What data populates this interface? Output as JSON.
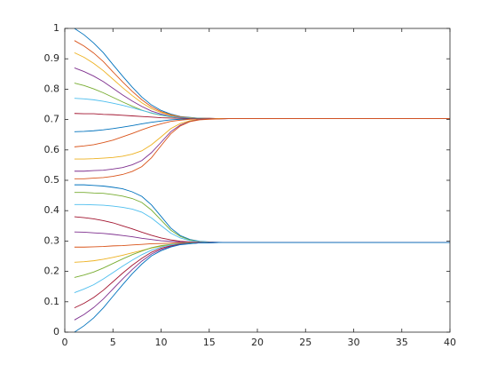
{
  "chart_data": {
    "type": "line",
    "x": [
      1,
      2,
      3,
      4,
      5,
      6,
      7,
      8,
      9,
      10,
      11,
      12,
      13,
      14,
      15,
      16,
      17,
      18,
      19,
      20,
      25,
      30,
      35,
      40
    ],
    "xlim": [
      0,
      40
    ],
    "xticks": [
      0,
      5,
      10,
      15,
      20,
      25,
      30,
      35,
      40
    ],
    "ylim": [
      0,
      1
    ],
    "yticks": [
      0,
      0.1,
      0.2,
      0.3,
      0.4,
      0.5,
      0.6,
      0.7,
      0.8,
      0.9,
      1
    ],
    "grid": false,
    "series": [
      {
        "color": "#0072BD",
        "values": [
          1.0,
          0.979,
          0.952,
          0.92,
          0.881,
          0.843,
          0.807,
          0.774,
          0.748,
          0.73,
          0.718,
          0.71,
          0.707,
          0.704,
          0.704,
          0.703,
          0.703,
          0.703,
          0.703,
          0.703,
          0.703,
          0.703,
          0.703,
          0.703
        ]
      },
      {
        "color": "#D95319",
        "values": [
          0.96,
          0.942,
          0.919,
          0.891,
          0.857,
          0.824,
          0.793,
          0.765,
          0.742,
          0.726,
          0.716,
          0.709,
          0.706,
          0.704,
          0.704,
          0.703,
          0.703,
          0.703,
          0.703,
          0.703,
          0.703,
          0.703,
          0.703,
          0.703
        ]
      },
      {
        "color": "#EDB120",
        "values": [
          0.92,
          0.905,
          0.885,
          0.861,
          0.833,
          0.805,
          0.779,
          0.755,
          0.736,
          0.723,
          0.714,
          0.708,
          0.706,
          0.704,
          0.703,
          0.703,
          0.703,
          0.703,
          0.703,
          0.703,
          0.703,
          0.703,
          0.703,
          0.703
        ]
      },
      {
        "color": "#7E2F8E",
        "values": [
          0.87,
          0.858,
          0.843,
          0.825,
          0.803,
          0.781,
          0.761,
          0.743,
          0.728,
          0.718,
          0.711,
          0.707,
          0.705,
          0.704,
          0.703,
          0.703,
          0.703,
          0.703,
          0.703,
          0.703,
          0.703,
          0.703,
          0.703,
          0.703
        ]
      },
      {
        "color": "#77AC30",
        "values": [
          0.82,
          0.812,
          0.801,
          0.788,
          0.773,
          0.758,
          0.744,
          0.731,
          0.721,
          0.714,
          0.709,
          0.706,
          0.704,
          0.704,
          0.703,
          0.703,
          0.703,
          0.703,
          0.703,
          0.703,
          0.703,
          0.703,
          0.703,
          0.703
        ]
      },
      {
        "color": "#4DBEEE",
        "values": [
          0.77,
          0.768,
          0.765,
          0.76,
          0.754,
          0.747,
          0.739,
          0.73,
          0.722,
          0.715,
          0.71,
          0.706,
          0.704,
          0.704,
          0.703,
          0.703,
          0.703,
          0.703,
          0.703,
          0.703,
          0.703,
          0.703,
          0.703,
          0.703
        ]
      },
      {
        "color": "#A2142F",
        "values": [
          0.72,
          0.719,
          0.719,
          0.717,
          0.716,
          0.714,
          0.712,
          0.71,
          0.708,
          0.706,
          0.705,
          0.704,
          0.703,
          0.703,
          0.703,
          0.703,
          0.703,
          0.703,
          0.703,
          0.703,
          0.703,
          0.703,
          0.703,
          0.703
        ]
      },
      {
        "color": "#0072BD",
        "values": [
          0.66,
          0.661,
          0.663,
          0.666,
          0.67,
          0.675,
          0.68,
          0.686,
          0.691,
          0.695,
          0.699,
          0.701,
          0.702,
          0.703,
          0.703,
          0.703,
          0.703,
          0.703,
          0.703,
          0.703,
          0.703,
          0.703,
          0.703,
          0.703
        ]
      },
      {
        "color": "#D95319",
        "values": [
          0.61,
          0.613,
          0.617,
          0.624,
          0.632,
          0.643,
          0.654,
          0.666,
          0.677,
          0.686,
          0.694,
          0.698,
          0.701,
          0.702,
          0.703,
          0.703,
          0.703,
          0.703,
          0.703,
          0.703,
          0.703,
          0.703,
          0.703,
          0.703
        ]
      },
      {
        "color": "#EDB120",
        "values": [
          0.57,
          0.57,
          0.571,
          0.573,
          0.575,
          0.579,
          0.586,
          0.597,
          0.617,
          0.643,
          0.67,
          0.687,
          0.696,
          0.7,
          0.702,
          0.703,
          0.703,
          0.703,
          0.703,
          0.703,
          0.703,
          0.703,
          0.703,
          0.703
        ]
      },
      {
        "color": "#7E2F8E",
        "values": [
          0.53,
          0.53,
          0.532,
          0.533,
          0.537,
          0.542,
          0.551,
          0.565,
          0.591,
          0.625,
          0.66,
          0.682,
          0.694,
          0.7,
          0.702,
          0.702,
          0.703,
          0.703,
          0.703,
          0.703,
          0.703,
          0.703,
          0.703,
          0.703
        ]
      },
      {
        "color": "#D95319",
        "values": [
          0.505,
          0.505,
          0.507,
          0.509,
          0.513,
          0.519,
          0.529,
          0.545,
          0.574,
          0.614,
          0.653,
          0.679,
          0.693,
          0.699,
          0.701,
          0.702,
          0.703,
          0.703,
          0.703,
          0.703,
          0.703,
          0.703,
          0.703,
          0.703
        ]
      },
      {
        "color": "#0072BD",
        "values": [
          0.485,
          0.485,
          0.483,
          0.481,
          0.477,
          0.472,
          0.462,
          0.447,
          0.419,
          0.381,
          0.343,
          0.318,
          0.305,
          0.299,
          0.297,
          0.296,
          0.295,
          0.295,
          0.295,
          0.295,
          0.295,
          0.295,
          0.295,
          0.295
        ]
      },
      {
        "color": "#77AC30",
        "values": [
          0.46,
          0.46,
          0.458,
          0.457,
          0.453,
          0.448,
          0.44,
          0.427,
          0.402,
          0.369,
          0.336,
          0.315,
          0.303,
          0.298,
          0.296,
          0.295,
          0.295,
          0.295,
          0.295,
          0.295,
          0.295,
          0.295,
          0.295,
          0.295
        ]
      },
      {
        "color": "#4DBEEE",
        "values": [
          0.42,
          0.42,
          0.419,
          0.418,
          0.415,
          0.411,
          0.405,
          0.395,
          0.376,
          0.351,
          0.326,
          0.31,
          0.301,
          0.298,
          0.296,
          0.295,
          0.295,
          0.295,
          0.295,
          0.295,
          0.295,
          0.295,
          0.295,
          0.295
        ]
      },
      {
        "color": "#A2142F",
        "values": [
          0.38,
          0.377,
          0.373,
          0.367,
          0.36,
          0.35,
          0.34,
          0.329,
          0.319,
          0.31,
          0.304,
          0.299,
          0.297,
          0.296,
          0.295,
          0.295,
          0.295,
          0.295,
          0.295,
          0.295,
          0.295,
          0.295,
          0.295,
          0.295
        ]
      },
      {
        "color": "#7E2F8E",
        "values": [
          0.33,
          0.329,
          0.327,
          0.325,
          0.322,
          0.318,
          0.314,
          0.309,
          0.305,
          0.301,
          0.299,
          0.297,
          0.296,
          0.295,
          0.295,
          0.295,
          0.295,
          0.295,
          0.295,
          0.295,
          0.295,
          0.295,
          0.295,
          0.295
        ]
      },
      {
        "color": "#D95319",
        "values": [
          0.28,
          0.28,
          0.281,
          0.282,
          0.284,
          0.285,
          0.287,
          0.289,
          0.291,
          0.292,
          0.293,
          0.294,
          0.295,
          0.295,
          0.295,
          0.295,
          0.295,
          0.295,
          0.295,
          0.295,
          0.295,
          0.295,
          0.295,
          0.295
        ]
      },
      {
        "color": "#EDB120",
        "values": [
          0.23,
          0.232,
          0.235,
          0.24,
          0.246,
          0.253,
          0.261,
          0.269,
          0.277,
          0.283,
          0.288,
          0.292,
          0.294,
          0.294,
          0.295,
          0.295,
          0.295,
          0.295,
          0.295,
          0.295,
          0.295,
          0.295,
          0.295,
          0.295
        ]
      },
      {
        "color": "#77AC30",
        "values": [
          0.18,
          0.188,
          0.198,
          0.211,
          0.226,
          0.241,
          0.255,
          0.267,
          0.278,
          0.285,
          0.289,
          0.292,
          0.294,
          0.294,
          0.295,
          0.295,
          0.295,
          0.295,
          0.295,
          0.295,
          0.295,
          0.295,
          0.295,
          0.295
        ]
      },
      {
        "color": "#4DBEEE",
        "values": [
          0.13,
          0.142,
          0.156,
          0.175,
          0.196,
          0.217,
          0.237,
          0.255,
          0.27,
          0.28,
          0.287,
          0.291,
          0.293,
          0.294,
          0.295,
          0.295,
          0.295,
          0.295,
          0.295,
          0.295,
          0.295,
          0.295,
          0.295,
          0.295
        ]
      },
      {
        "color": "#A2142F",
        "values": [
          0.08,
          0.095,
          0.114,
          0.138,
          0.166,
          0.194,
          0.22,
          0.243,
          0.263,
          0.276,
          0.284,
          0.29,
          0.292,
          0.294,
          0.295,
          0.295,
          0.295,
          0.295,
          0.295,
          0.295,
          0.295,
          0.295,
          0.295,
          0.295
        ]
      },
      {
        "color": "#7E2F8E",
        "values": [
          0.04,
          0.058,
          0.081,
          0.109,
          0.142,
          0.175,
          0.206,
          0.234,
          0.257,
          0.272,
          0.282,
          0.289,
          0.292,
          0.294,
          0.294,
          0.295,
          0.295,
          0.295,
          0.295,
          0.295,
          0.295,
          0.295,
          0.295,
          0.295
        ]
      },
      {
        "color": "#0072BD",
        "values": [
          0,
          0.021,
          0.047,
          0.08,
          0.118,
          0.156,
          0.192,
          0.224,
          0.251,
          0.268,
          0.28,
          0.288,
          0.291,
          0.294,
          0.294,
          0.295,
          0.295,
          0.295,
          0.295,
          0.295,
          0.295,
          0.295,
          0.295,
          0.295
        ]
      }
    ]
  }
}
